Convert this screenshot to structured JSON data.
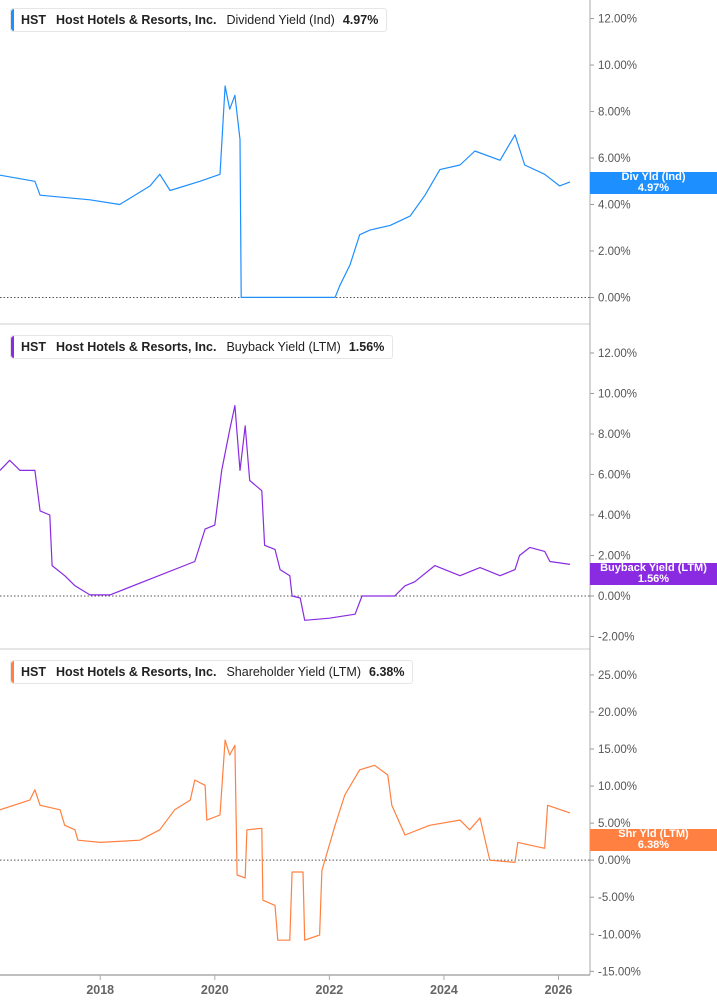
{
  "colors": {
    "dividend": "#1e8fff",
    "buyback": "#8a2be2",
    "shareholder": "#ff8040",
    "axis": "#999999",
    "text": "#555555"
  },
  "chart_data": [
    {
      "type": "line",
      "ticker": "HST",
      "company": "Host Hotels & Resorts, Inc.",
      "metric": "Dividend Yield (Ind)",
      "latest": "4.97%",
      "tag_label": "Div Yld (Ind)",
      "tag_value": "4.97%",
      "ylim": [
        -1.1,
        12.8
      ],
      "yticks": [
        "0.00%",
        "2.00%",
        "4.00%",
        "6.00%",
        "8.00%",
        "10.00%",
        "12.00%"
      ],
      "ytick_values": [
        0,
        2,
        4,
        6,
        8,
        10,
        12
      ],
      "x": [
        2016.25,
        2016.86,
        2016.95,
        2017.82,
        2018.34,
        2018.87,
        2019.04,
        2019.22,
        2019.74,
        2020.09,
        2020.18,
        2020.26,
        2020.35,
        2020.44,
        2020.46,
        2022.1,
        2022.18,
        2022.36,
        2022.53,
        2022.71,
        2023.06,
        2023.41,
        2023.67,
        2023.93,
        2024.28,
        2024.54,
        2024.98,
        2025.24,
        2025.41,
        2025.76,
        2026.02,
        2026.2
      ],
      "y": [
        5.26,
        5.0,
        4.4,
        4.2,
        4.0,
        4.8,
        5.3,
        4.6,
        5.0,
        5.3,
        9.1,
        8.1,
        8.7,
        6.8,
        0,
        0,
        0.5,
        1.4,
        2.7,
        2.9,
        3.1,
        3.5,
        4.4,
        5.5,
        5.7,
        6.3,
        5.9,
        7.0,
        5.7,
        5.3,
        4.8,
        4.97
      ]
    },
    {
      "type": "line",
      "ticker": "HST",
      "company": "Host Hotels & Resorts, Inc.",
      "metric": "Buyback Yield (LTM)",
      "latest": "1.56%",
      "tag_label": "Buyback Yield (LTM)",
      "tag_value": "1.56%",
      "ylim": [
        -2.57,
        13.43
      ],
      "yticks": [
        "-2.00%",
        "0.00%",
        "2.00%",
        "4.00%",
        "6.00%",
        "8.00%",
        "10.00%",
        "12.00%"
      ],
      "ytick_values": [
        -2,
        0,
        2,
        4,
        6,
        8,
        10,
        12
      ],
      "x": [
        2016.25,
        2016.42,
        2016.6,
        2016.86,
        2016.95,
        2017.12,
        2017.16,
        2017.38,
        2017.56,
        2017.82,
        2018.17,
        2019.65,
        2019.83,
        2020.0,
        2020.12,
        2020.26,
        2020.35,
        2020.44,
        2020.53,
        2020.61,
        2020.82,
        2020.87,
        2021.05,
        2021.14,
        2021.31,
        2021.35,
        2021.49,
        2021.57,
        2022.0,
        2022.45,
        2022.57,
        2023.14,
        2023.32,
        2023.49,
        2023.84,
        2024.28,
        2024.63,
        2024.98,
        2025.24,
        2025.32,
        2025.5,
        2025.76,
        2025.85,
        2026.2
      ],
      "y": [
        6.2,
        6.7,
        6.2,
        6.2,
        4.2,
        4.0,
        1.5,
        1.0,
        0.5,
        0.05,
        0.05,
        1.7,
        3.3,
        3.5,
        6.2,
        8.2,
        9.4,
        6.2,
        8.4,
        5.7,
        5.2,
        2.5,
        2.3,
        1.3,
        1.0,
        0,
        -0.1,
        -1.2,
        -1.1,
        -0.9,
        0,
        0,
        0.5,
        0.7,
        1.5,
        1.0,
        1.4,
        1.0,
        1.3,
        2.0,
        2.4,
        2.2,
        1.7,
        1.56
      ]
    },
    {
      "type": "line",
      "ticker": "HST",
      "company": "Host Hotels & Resorts, Inc.",
      "metric": "Shareholder Yield (LTM)",
      "latest": "6.38%",
      "tag_label": "Shr Yld (LTM)",
      "tag_value": "6.38%",
      "ylim": [
        -15.5,
        28.5
      ],
      "yticks": [
        "-15.00%",
        "-10.00%",
        "-5.00%",
        "0.00%",
        "5.00%",
        "10.00%",
        "15.00%",
        "20.00%",
        "25.00%"
      ],
      "ytick_values": [
        -15,
        -10,
        -5,
        0,
        5,
        10,
        15,
        20,
        25
      ],
      "x": [
        2016.25,
        2016.77,
        2016.86,
        2016.95,
        2017.3,
        2017.38,
        2017.56,
        2017.61,
        2018.0,
        2018.69,
        2019.04,
        2019.3,
        2019.57,
        2019.65,
        2019.83,
        2019.86,
        2020.09,
        2020.18,
        2020.26,
        2020.35,
        2020.39,
        2020.53,
        2020.56,
        2020.82,
        2020.84,
        2021.05,
        2021.1,
        2021.31,
        2021.35,
        2021.54,
        2021.57,
        2021.83,
        2021.87,
        2022.1,
        2022.27,
        2022.53,
        2022.79,
        2023.02,
        2023.09,
        2023.32,
        2023.75,
        2024.28,
        2024.45,
        2024.63,
        2024.8,
        2025.24,
        2025.29,
        2025.76,
        2025.81,
        2026.2
      ],
      "y": [
        6.8,
        8.1,
        9.5,
        7.4,
        6.8,
        4.7,
        4.1,
        2.7,
        2.4,
        2.7,
        4.1,
        6.8,
        8.1,
        10.8,
        10.1,
        5.4,
        6.1,
        16.2,
        14.2,
        15.5,
        -2.0,
        -2.4,
        4.1,
        4.3,
        -5.4,
        -6.1,
        -10.8,
        -10.8,
        -1.6,
        -1.6,
        -10.8,
        -10.1,
        -1.4,
        4.7,
        8.8,
        12.2,
        12.8,
        11.5,
        7.4,
        3.4,
        4.7,
        5.4,
        4.1,
        5.7,
        0,
        -0.3,
        2.4,
        1.6,
        7.4,
        6.38
      ]
    }
  ],
  "xaxis": {
    "ticks": [
      "2018",
      "2020",
      "2022",
      "2024",
      "2026"
    ],
    "tick_values": [
      2018,
      2020,
      2022,
      2024,
      2026
    ],
    "range": [
      2016.25,
      2026.55
    ]
  }
}
